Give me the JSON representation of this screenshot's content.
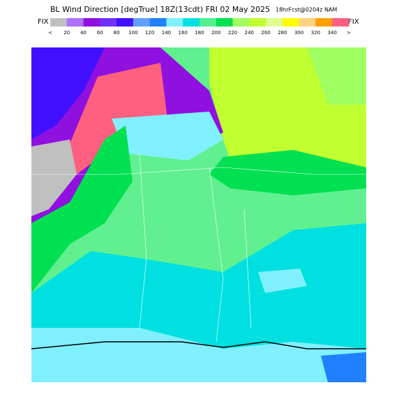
{
  "header": {
    "title": "BL Wind Direction [degTrue] 18Z(13cdt) FRI 02 May 2025",
    "subtitle": "18hrFcst@0204z NAM"
  },
  "colorbar": {
    "end_label_left": "FIX",
    "end_label_right": "FIX",
    "labels": [
      "<",
      "20",
      "40",
      "60",
      "80",
      "100",
      "120",
      "140",
      "160",
      "180",
      "200",
      "220",
      "240",
      "260",
      "280",
      "300",
      "320",
      "340",
      ">"
    ],
    "colors": [
      "#c0c0c0",
      "#b070ff",
      "#9010e0",
      "#7030ff",
      "#4010ff",
      "#60a0ff",
      "#2080ff",
      "#80f0ff",
      "#00e0e0",
      "#50f090",
      "#00e050",
      "#a0ff60",
      "#c0ff30",
      "#e0ff90",
      "#ffff00",
      "#ffd080",
      "#ffa000",
      "#ff6080"
    ]
  }
}
